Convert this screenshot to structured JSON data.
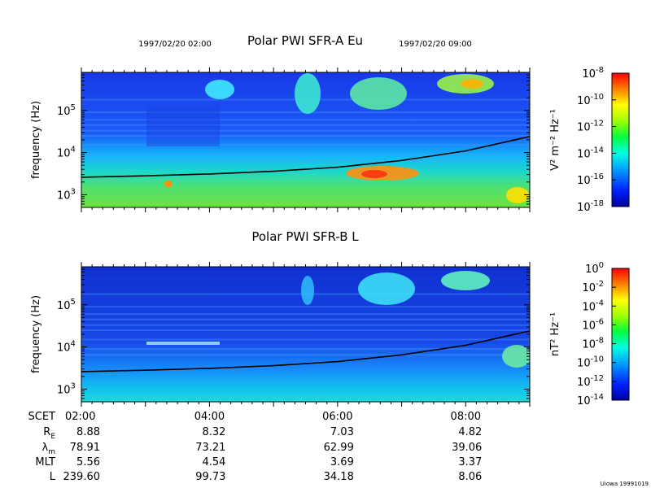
{
  "header": {
    "start_time": "1997/02/20 02:00",
    "end_time": "1997/02/20 09:00",
    "footer_tag": "Uiowa 19991019"
  },
  "chart_data": [
    {
      "type": "heatmap",
      "title": "Polar PWI SFR-A Eu",
      "ylabel": "frequency (Hz)",
      "yscale": "log",
      "ylim": [
        500,
        800000
      ],
      "ytick_labels": [
        "10^3",
        "10^4",
        "10^5"
      ],
      "x_range": [
        "02:00",
        "09:00"
      ],
      "colorbar": {
        "label": "V² m⁻² Hz⁻¹",
        "scale": "log",
        "range": [
          1e-18,
          1e-08
        ],
        "tick_labels": [
          "10^-8",
          "10^-10",
          "10^-12",
          "10^-14",
          "10^-16",
          "10^-18"
        ]
      },
      "overlay_line": {
        "name": "",
        "x": [
          "02:00",
          "03:00",
          "04:00",
          "05:00",
          "06:00",
          "07:00",
          "08:00",
          "09:00"
        ],
        "y": [
          2600,
          2800,
          3100,
          3600,
          4500,
          6500,
          11000,
          24000
        ]
      }
    },
    {
      "type": "heatmap",
      "title": "Polar PWI SFR-B L",
      "ylabel": "frequency (Hz)",
      "yscale": "log",
      "ylim": [
        500,
        800000
      ],
      "ytick_labels": [
        "10^3",
        "10^4",
        "10^5"
      ],
      "x_range": [
        "02:00",
        "09:00"
      ],
      "colorbar": {
        "label": "nT² Hz⁻¹",
        "scale": "log",
        "range": [
          1e-14,
          1
        ],
        "tick_labels": [
          "10^0",
          "10^-2",
          "10^-4",
          "10^-6",
          "10^-8",
          "10^-10",
          "10^-12",
          "10^-14"
        ]
      },
      "overlay_line": {
        "name": "",
        "x": [
          "02:00",
          "03:00",
          "04:00",
          "05:00",
          "06:00",
          "07:00",
          "08:00",
          "09:00"
        ],
        "y": [
          2600,
          2800,
          3100,
          3600,
          4500,
          6500,
          11000,
          24000
        ]
      }
    }
  ],
  "ephemeris": {
    "rows": [
      {
        "label": "SCET",
        "values": [
          "02:00",
          "04:00",
          "06:00",
          "08:00"
        ]
      },
      {
        "label": "R_E",
        "values": [
          "8.88",
          "8.32",
          "7.03",
          "4.82"
        ]
      },
      {
        "label": "λ_m",
        "values": [
          "78.91",
          "73.21",
          "62.99",
          "39.06"
        ]
      },
      {
        "label": "MLT",
        "values": [
          "5.56",
          "4.54",
          "3.69",
          "3.37"
        ]
      },
      {
        "label": "L",
        "values": [
          "239.60",
          "99.73",
          "34.18",
          "8.06"
        ]
      }
    ]
  }
}
